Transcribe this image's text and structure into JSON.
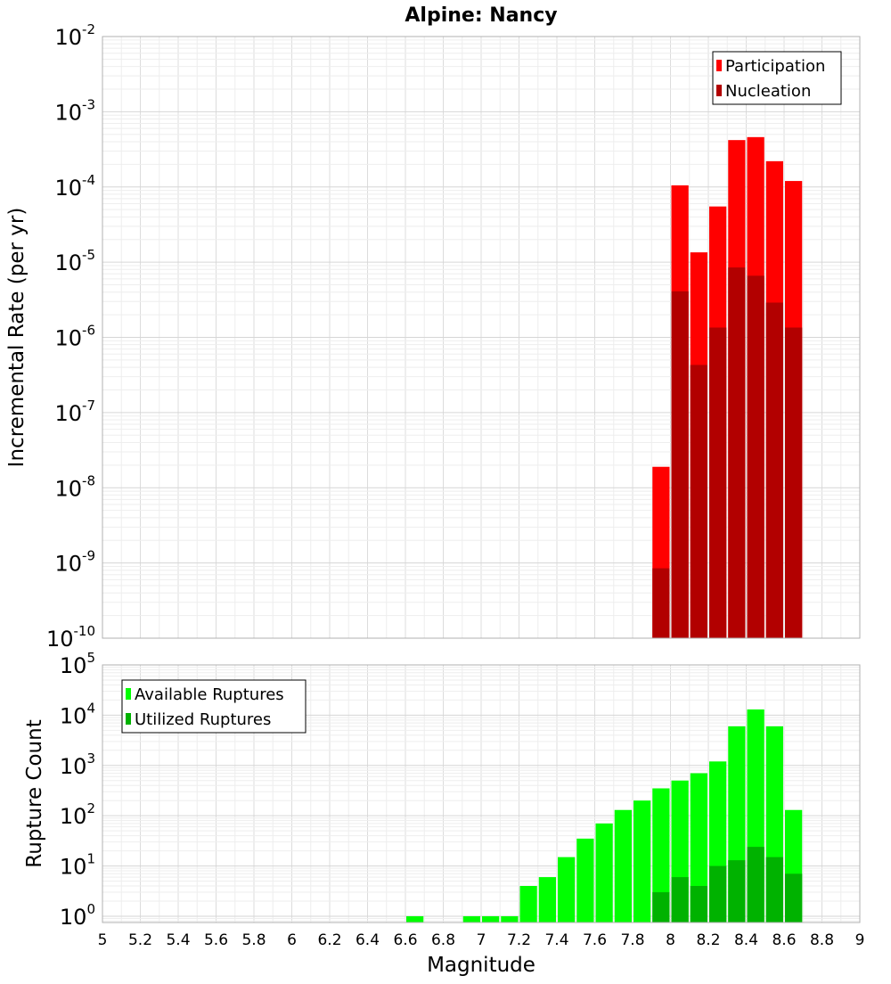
{
  "chart_data": [
    {
      "type": "bar",
      "title": "Alpine: Nancy",
      "xlabel": "",
      "ylabel": "Incremental Rate (per yr)",
      "yscale": "log",
      "ylim": [
        1e-10,
        0.01
      ],
      "xlim": [
        5,
        9
      ],
      "bar_width": 0.1,
      "y_tick_labels": [
        {
          "base": "10",
          "exp": "-10"
        },
        {
          "base": "10",
          "exp": "-9"
        },
        {
          "base": "10",
          "exp": "-8"
        },
        {
          "base": "10",
          "exp": "-7"
        },
        {
          "base": "10",
          "exp": "-6"
        },
        {
          "base": "10",
          "exp": "-5"
        },
        {
          "base": "10",
          "exp": "-4"
        },
        {
          "base": "10",
          "exp": "-3"
        },
        {
          "base": "10",
          "exp": "-2"
        }
      ],
      "legend": {
        "position": "top-right",
        "entries": [
          {
            "label": "Participation",
            "color": "#ff0000"
          },
          {
            "label": "Nucleation",
            "color": "#b20000"
          }
        ]
      },
      "series": [
        {
          "name": "Participation",
          "color": "#ff0000",
          "x": [
            7.95,
            8.05,
            8.15,
            8.25,
            8.35,
            8.45,
            8.55,
            8.65
          ],
          "values": [
            1.9e-08,
            0.000105,
            1.35e-05,
            5.5e-05,
            0.00042,
            0.00046,
            0.00022,
            0.00012
          ]
        },
        {
          "name": "Nucleation",
          "color": "#b20000",
          "x": [
            7.95,
            8.05,
            8.15,
            8.25,
            8.35,
            8.45,
            8.55,
            8.65
          ],
          "values": [
            8.5e-10,
            4.1e-06,
            4.3e-07,
            1.35e-06,
            8.5e-06,
            6.6e-06,
            2.9e-06,
            1.35e-06
          ]
        }
      ]
    },
    {
      "type": "bar",
      "title": "",
      "xlabel": "Magnitude",
      "ylabel": "Rupture Count",
      "yscale": "log",
      "ylim": [
        0.75,
        100000.0
      ],
      "xlim": [
        5,
        9
      ],
      "bar_width": 0.1,
      "x_ticks": [
        "5",
        "5.2",
        "5.4",
        "5.6",
        "5.8",
        "6",
        "6.2",
        "6.4",
        "6.6",
        "6.8",
        "7",
        "7.2",
        "7.4",
        "7.6",
        "7.8",
        "8",
        "8.2",
        "8.4",
        "8.6",
        "8.8",
        "9"
      ],
      "y_tick_labels": [
        {
          "base": "10",
          "exp": "0"
        },
        {
          "base": "10",
          "exp": "1"
        },
        {
          "base": "10",
          "exp": "2"
        },
        {
          "base": "10",
          "exp": "3"
        },
        {
          "base": "10",
          "exp": "4"
        },
        {
          "base": "10",
          "exp": "5"
        }
      ],
      "legend": {
        "position": "top-left",
        "entries": [
          {
            "label": "Available Ruptures",
            "color": "#00ff00"
          },
          {
            "label": "Utilized Ruptures",
            "color": "#00b200"
          }
        ]
      },
      "series": [
        {
          "name": "Available Ruptures",
          "color": "#00ff00",
          "x": [
            6.65,
            6.95,
            7.05,
            7.15,
            7.25,
            7.35,
            7.45,
            7.55,
            7.65,
            7.75,
            7.85,
            7.95,
            8.05,
            8.15,
            8.25,
            8.35,
            8.45,
            8.55,
            8.65
          ],
          "values": [
            1,
            1,
            1,
            1,
            4,
            6,
            15,
            35,
            70,
            130,
            200,
            350,
            500,
            700,
            1200,
            6000,
            13000,
            6000,
            130
          ]
        },
        {
          "name": "Utilized Ruptures",
          "color": "#00b200",
          "x": [
            7.95,
            8.05,
            8.15,
            8.25,
            8.35,
            8.45,
            8.55,
            8.65
          ],
          "values": [
            3,
            6,
            4,
            10,
            13,
            24,
            15,
            7
          ]
        }
      ]
    }
  ]
}
